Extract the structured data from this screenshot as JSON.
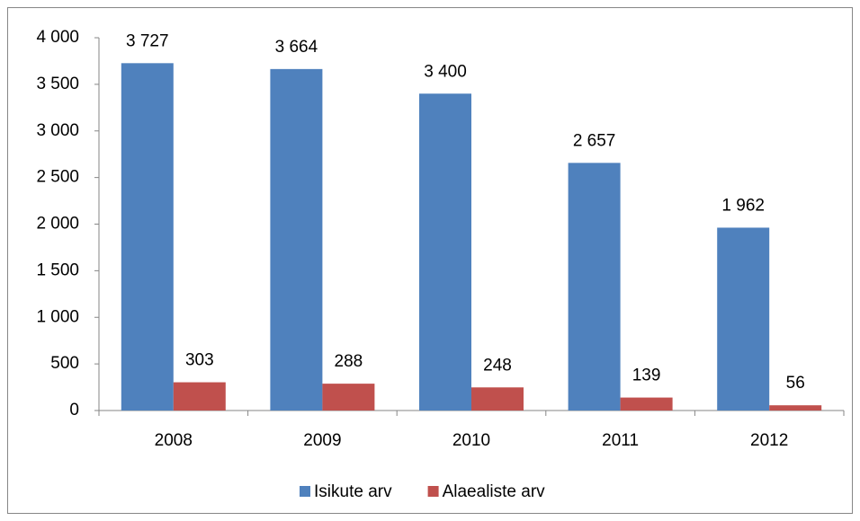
{
  "chart_data": {
    "type": "bar",
    "categories": [
      "2008",
      "2009",
      "2010",
      "2011",
      "2012"
    ],
    "series": [
      {
        "name": "Isikute arv",
        "color": "#4f81bd",
        "values": [
          3727,
          3664,
          3400,
          2657,
          1962
        ],
        "value_labels": [
          "3 727",
          "3 664",
          "3 400",
          "2 657",
          "1 962"
        ]
      },
      {
        "name": "Alaealiste arv",
        "color": "#c0504d",
        "values": [
          303,
          288,
          248,
          139,
          56
        ],
        "value_labels": [
          "303",
          "288",
          "248",
          "139",
          "56"
        ]
      }
    ],
    "ylim": [
      0,
      4000
    ],
    "yticks": [
      0,
      500,
      {
        "value": 1000,
        "label": "1 000"
      },
      {
        "value": 1500,
        "label": "1 500"
      },
      {
        "value": 2000,
        "label": "2 000"
      },
      {
        "value": 2500,
        "label": "2 500"
      },
      {
        "value": 3000,
        "label": "3 000"
      },
      {
        "value": 3500,
        "label": "3 500"
      },
      {
        "value": 4000,
        "label": "4 000"
      }
    ],
    "grid": false,
    "legend": "bottom"
  }
}
